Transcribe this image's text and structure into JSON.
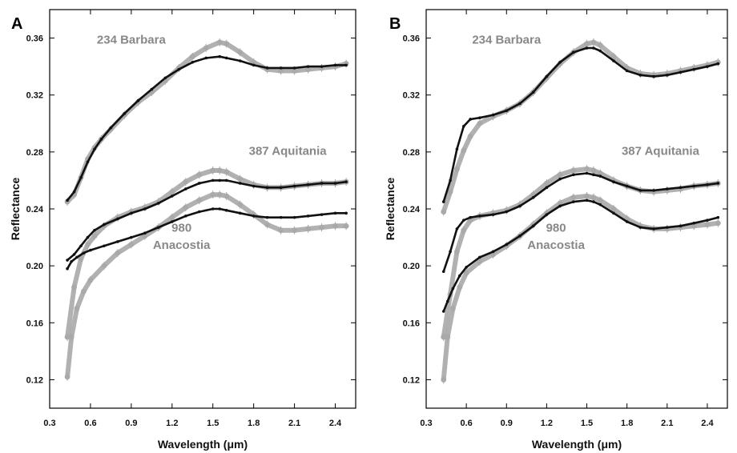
{
  "colors": {
    "model": "#111111",
    "observed": "#a8a8a8",
    "label": "#888888",
    "axis": "#000000"
  },
  "chart_data": [
    {
      "panel": "A",
      "type": "line",
      "xlabel": "Wavelength (μm)",
      "ylabel": "Reflectance",
      "xlim": [
        0.3,
        2.55
      ],
      "ylim": [
        0.1,
        0.38
      ],
      "xticks": [
        "0.3",
        "0.6",
        "0.9",
        "1.2",
        "1.5",
        "1.8",
        "2.1",
        "2.4"
      ],
      "yticks": [
        "0.12",
        "0.16",
        "0.20",
        "0.24",
        "0.28",
        "0.32",
        "0.36"
      ],
      "annotations": [
        {
          "text": "234 Barbara",
          "x": 0.9,
          "y": 0.356
        },
        {
          "text": "387 Aquitania",
          "x": 2.05,
          "y": 0.278
        },
        {
          "text": "980",
          "x": 1.27,
          "y": 0.224
        },
        {
          "text": "Anacostia",
          "x": 1.27,
          "y": 0.212
        }
      ],
      "series": [
        {
          "style": "observed",
          "x": [
            0.43,
            0.48,
            0.53,
            0.58,
            0.63,
            0.68,
            0.75,
            0.85,
            0.95,
            1.05,
            1.15,
            1.25,
            1.35,
            1.45,
            1.55,
            1.6,
            1.7,
            1.8,
            1.9,
            2.0,
            2.1,
            2.2,
            2.3,
            2.4,
            2.48
          ],
          "y": [
            0.245,
            0.25,
            0.262,
            0.275,
            0.283,
            0.289,
            0.296,
            0.306,
            0.315,
            0.322,
            0.33,
            0.339,
            0.347,
            0.353,
            0.357,
            0.356,
            0.35,
            0.343,
            0.338,
            0.337,
            0.337,
            0.338,
            0.339,
            0.34,
            0.342
          ]
        },
        {
          "style": "model",
          "x": [
            0.43,
            0.48,
            0.53,
            0.58,
            0.63,
            0.68,
            0.75,
            0.85,
            0.95,
            1.05,
            1.15,
            1.25,
            1.35,
            1.45,
            1.55,
            1.6,
            1.7,
            1.8,
            1.9,
            2.0,
            2.1,
            2.2,
            2.3,
            2.4,
            2.48
          ],
          "y": [
            0.246,
            0.252,
            0.262,
            0.273,
            0.282,
            0.289,
            0.297,
            0.307,
            0.316,
            0.324,
            0.332,
            0.338,
            0.343,
            0.346,
            0.347,
            0.346,
            0.344,
            0.341,
            0.339,
            0.339,
            0.339,
            0.34,
            0.34,
            0.341,
            0.341
          ]
        },
        {
          "style": "observed",
          "x": [
            0.43,
            0.48,
            0.53,
            0.58,
            0.63,
            0.7,
            0.8,
            0.9,
            1.0,
            1.1,
            1.2,
            1.3,
            1.4,
            1.5,
            1.55,
            1.6,
            1.7,
            1.8,
            1.9,
            2.0,
            2.1,
            2.2,
            2.3,
            2.4,
            2.48
          ],
          "y": [
            0.15,
            0.185,
            0.205,
            0.215,
            0.221,
            0.228,
            0.234,
            0.238,
            0.241,
            0.245,
            0.252,
            0.259,
            0.264,
            0.267,
            0.267,
            0.266,
            0.261,
            0.257,
            0.255,
            0.255,
            0.256,
            0.257,
            0.258,
            0.258,
            0.259
          ]
        },
        {
          "style": "model",
          "x": [
            0.43,
            0.48,
            0.53,
            0.58,
            0.63,
            0.7,
            0.8,
            0.9,
            1.0,
            1.1,
            1.2,
            1.3,
            1.4,
            1.5,
            1.55,
            1.6,
            1.7,
            1.8,
            1.9,
            2.0,
            2.1,
            2.2,
            2.3,
            2.4,
            2.48
          ],
          "y": [
            0.204,
            0.208,
            0.214,
            0.22,
            0.225,
            0.229,
            0.233,
            0.237,
            0.24,
            0.244,
            0.249,
            0.254,
            0.258,
            0.26,
            0.26,
            0.26,
            0.258,
            0.256,
            0.255,
            0.255,
            0.256,
            0.257,
            0.258,
            0.258,
            0.259
          ]
        },
        {
          "style": "observed",
          "x": [
            0.43,
            0.46,
            0.5,
            0.55,
            0.6,
            0.7,
            0.8,
            0.9,
            1.0,
            1.1,
            1.2,
            1.3,
            1.4,
            1.5,
            1.55,
            1.6,
            1.7,
            1.8,
            1.9,
            2.0,
            2.1,
            2.2,
            2.3,
            2.4,
            2.48
          ],
          "y": [
            0.122,
            0.15,
            0.17,
            0.182,
            0.19,
            0.2,
            0.209,
            0.215,
            0.221,
            0.227,
            0.234,
            0.241,
            0.246,
            0.25,
            0.25,
            0.249,
            0.243,
            0.236,
            0.229,
            0.225,
            0.225,
            0.226,
            0.227,
            0.228,
            0.228
          ]
        },
        {
          "style": "model",
          "x": [
            0.43,
            0.46,
            0.5,
            0.55,
            0.6,
            0.7,
            0.8,
            0.9,
            1.0,
            1.1,
            1.2,
            1.3,
            1.4,
            1.5,
            1.55,
            1.6,
            1.7,
            1.8,
            1.9,
            2.0,
            2.1,
            2.2,
            2.3,
            2.4,
            2.48
          ],
          "y": [
            0.198,
            0.203,
            0.206,
            0.209,
            0.211,
            0.214,
            0.217,
            0.22,
            0.223,
            0.227,
            0.231,
            0.235,
            0.238,
            0.24,
            0.24,
            0.239,
            0.237,
            0.235,
            0.234,
            0.234,
            0.234,
            0.235,
            0.236,
            0.237,
            0.237
          ]
        }
      ]
    },
    {
      "panel": "B",
      "type": "line",
      "xlabel": "Wavelength (μm)",
      "ylabel": "Reflectance",
      "xlim": [
        0.3,
        2.55
      ],
      "ylim": [
        0.1,
        0.38
      ],
      "xticks": [
        "0.3",
        "0.6",
        "0.9",
        "1.2",
        "1.5",
        "1.8",
        "2.1",
        "2.4"
      ],
      "yticks": [
        "0.12",
        "0.16",
        "0.20",
        "0.24",
        "0.28",
        "0.32",
        "0.36"
      ],
      "annotations": [
        {
          "text": "234 Barbara",
          "x": 0.9,
          "y": 0.356
        },
        {
          "text": "387 Aquitania",
          "x": 2.05,
          "y": 0.278
        },
        {
          "text": "980",
          "x": 1.27,
          "y": 0.224
        },
        {
          "text": "Anacostia",
          "x": 1.27,
          "y": 0.212
        }
      ],
      "series": [
        {
          "style": "observed",
          "x": [
            0.43,
            0.48,
            0.53,
            0.58,
            0.63,
            0.7,
            0.8,
            0.9,
            1.0,
            1.1,
            1.2,
            1.3,
            1.4,
            1.5,
            1.55,
            1.6,
            1.7,
            1.8,
            1.9,
            2.0,
            2.1,
            2.2,
            2.3,
            2.4,
            2.48
          ],
          "y": [
            0.238,
            0.252,
            0.268,
            0.281,
            0.291,
            0.3,
            0.305,
            0.309,
            0.314,
            0.322,
            0.332,
            0.342,
            0.35,
            0.356,
            0.357,
            0.355,
            0.347,
            0.339,
            0.335,
            0.334,
            0.335,
            0.337,
            0.339,
            0.341,
            0.343
          ]
        },
        {
          "style": "model",
          "x": [
            0.43,
            0.48,
            0.53,
            0.58,
            0.63,
            0.7,
            0.8,
            0.9,
            1.0,
            1.1,
            1.2,
            1.3,
            1.4,
            1.5,
            1.55,
            1.6,
            1.7,
            1.8,
            1.9,
            2.0,
            2.1,
            2.2,
            2.3,
            2.4,
            2.48
          ],
          "y": [
            0.245,
            0.26,
            0.282,
            0.298,
            0.303,
            0.304,
            0.306,
            0.309,
            0.314,
            0.322,
            0.333,
            0.343,
            0.35,
            0.353,
            0.353,
            0.351,
            0.344,
            0.337,
            0.334,
            0.333,
            0.334,
            0.336,
            0.338,
            0.34,
            0.342
          ]
        },
        {
          "style": "observed",
          "x": [
            0.43,
            0.48,
            0.53,
            0.58,
            0.63,
            0.7,
            0.8,
            0.9,
            1.0,
            1.1,
            1.2,
            1.3,
            1.4,
            1.5,
            1.55,
            1.6,
            1.7,
            1.8,
            1.9,
            2.0,
            2.1,
            2.2,
            2.3,
            2.4,
            2.48
          ],
          "y": [
            0.15,
            0.18,
            0.21,
            0.225,
            0.232,
            0.235,
            0.237,
            0.239,
            0.243,
            0.25,
            0.258,
            0.264,
            0.267,
            0.268,
            0.267,
            0.265,
            0.26,
            0.256,
            0.253,
            0.252,
            0.253,
            0.254,
            0.256,
            0.257,
            0.258
          ]
        },
        {
          "style": "model",
          "x": [
            0.43,
            0.48,
            0.53,
            0.58,
            0.63,
            0.7,
            0.8,
            0.9,
            1.0,
            1.1,
            1.2,
            1.3,
            1.4,
            1.5,
            1.55,
            1.6,
            1.7,
            1.8,
            1.9,
            2.0,
            2.1,
            2.2,
            2.3,
            2.4,
            2.48
          ],
          "y": [
            0.196,
            0.21,
            0.226,
            0.232,
            0.234,
            0.235,
            0.236,
            0.238,
            0.242,
            0.248,
            0.255,
            0.261,
            0.264,
            0.265,
            0.264,
            0.263,
            0.259,
            0.256,
            0.253,
            0.253,
            0.254,
            0.255,
            0.256,
            0.257,
            0.258
          ]
        },
        {
          "style": "observed",
          "x": [
            0.43,
            0.46,
            0.5,
            0.55,
            0.6,
            0.7,
            0.8,
            0.9,
            1.0,
            1.1,
            1.2,
            1.3,
            1.4,
            1.5,
            1.55,
            1.6,
            1.7,
            1.8,
            1.9,
            2.0,
            2.1,
            2.2,
            2.3,
            2.4,
            2.48
          ],
          "y": [
            0.12,
            0.15,
            0.17,
            0.185,
            0.195,
            0.203,
            0.208,
            0.214,
            0.221,
            0.229,
            0.237,
            0.244,
            0.248,
            0.249,
            0.248,
            0.246,
            0.24,
            0.233,
            0.228,
            0.226,
            0.226,
            0.227,
            0.228,
            0.229,
            0.23
          ]
        },
        {
          "style": "model",
          "x": [
            0.43,
            0.46,
            0.5,
            0.55,
            0.6,
            0.7,
            0.8,
            0.9,
            1.0,
            1.1,
            1.2,
            1.3,
            1.4,
            1.5,
            1.55,
            1.6,
            1.7,
            1.8,
            1.9,
            2.0,
            2.1,
            2.2,
            2.3,
            2.4,
            2.48
          ],
          "y": [
            0.168,
            0.175,
            0.184,
            0.193,
            0.199,
            0.206,
            0.21,
            0.215,
            0.221,
            0.228,
            0.236,
            0.242,
            0.245,
            0.246,
            0.245,
            0.243,
            0.237,
            0.231,
            0.227,
            0.226,
            0.227,
            0.228,
            0.23,
            0.232,
            0.234
          ]
        }
      ]
    }
  ]
}
